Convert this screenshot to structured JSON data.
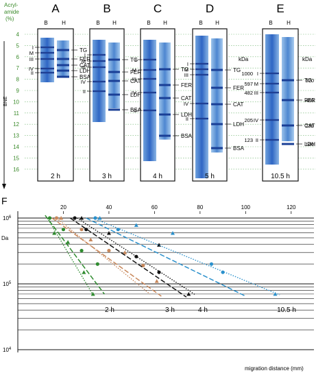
{
  "top": {
    "acryl_label": [
      "Acryl-",
      "amide",
      "(%)"
    ],
    "acryl_values": [
      "4",
      "5",
      "6",
      "7",
      "8",
      "9",
      "10",
      "11",
      "12",
      "13",
      "14",
      "15",
      "16"
    ],
    "bne_label": "BNE",
    "panels": [
      {
        "letter": "A",
        "lanes": [
          "B",
          "H"
        ],
        "time": "2 h",
        "marks": [
          "TG",
          "FER",
          "CAT",
          "LDH",
          "BSA"
        ],
        "roman": [
          "I",
          "M",
          "III",
          "IV",
          "II"
        ]
      },
      {
        "letter": "B",
        "lanes": [
          "B",
          "H"
        ],
        "time": "3 h",
        "marks": [
          "TG",
          "FER",
          "CAT",
          "LDH",
          "BSA"
        ],
        "roman": [
          "I",
          "M",
          "III",
          "IV",
          "II"
        ]
      },
      {
        "letter": "C",
        "lanes": [
          "B",
          "H"
        ],
        "time": "4 h",
        "marks": [
          "TG",
          "FER",
          "CAT",
          "LDH",
          "BSA"
        ],
        "roman": [
          "I",
          "M",
          "III",
          "IV",
          "II"
        ]
      },
      {
        "letter": "D",
        "lanes": [
          "B",
          "H"
        ],
        "time": "5 h",
        "marks": [
          "TG",
          "FER",
          "CAT",
          "LDH",
          "BSA"
        ],
        "roman": [
          "I",
          "M",
          "III",
          "IV",
          "II"
        ]
      },
      {
        "letter": "E",
        "lanes": [
          "B",
          "H"
        ],
        "time": "10.5 h",
        "marks": [
          "TG",
          "FER",
          "CAT",
          "LDH"
        ],
        "roman": [
          "I",
          "M",
          "III",
          "IV",
          "II"
        ]
      }
    ],
    "kda_label": "kDa",
    "e_left_kda": [
      "1000",
      "597",
      "482",
      "205",
      "123"
    ],
    "e_right_kda": [
      "670",
      "480",
      "239",
      "146"
    ]
  },
  "plot": {
    "panel_letter": "F",
    "y_label": "Da",
    "y_ticks": [
      "10^6",
      "10^5",
      "10^4"
    ],
    "x_label": "migration distance (mm)",
    "x_ticks": [
      "20",
      "40",
      "60",
      "80",
      "100",
      "120"
    ],
    "time_labels": [
      "2 h",
      "3 h",
      "4 h",
      "10.5 h"
    ],
    "colors": {
      "2h": "#2e8b2e",
      "3h": "#c8875a",
      "4h": "#111111",
      "10.5h": "#2a90cc"
    }
  },
  "chart_data": {
    "type": "scatter",
    "xlabel": "migration distance (mm)",
    "ylabel": "Da",
    "xlim": [
      0,
      130
    ],
    "ylim": [
      10000,
      1500000
    ],
    "yscale": "log",
    "series": [
      {
        "name": "2 h",
        "color": "#2e8b2e",
        "circles": [
          [
            14,
            1000000
          ],
          [
            20,
            670000
          ],
          [
            28,
            320000
          ],
          [
            35,
            200000
          ]
        ],
        "triangles": [
          [
            16,
            590000
          ],
          [
            22,
            430000
          ],
          [
            29,
            150000
          ],
          [
            33,
            70000
          ]
        ],
        "fit_solid": [
          [
            12,
            1100000
          ],
          [
            38,
            70000
          ]
        ],
        "fit_dotted": [
          [
            13,
            1000000
          ],
          [
            33,
            68000
          ]
        ]
      },
      {
        "name": "3 h",
        "color": "#c8875a",
        "circles": [
          [
            17,
            1000000
          ],
          [
            28,
            670000
          ],
          [
            40,
            320000
          ],
          [
            55,
            190000
          ]
        ],
        "triangles": [
          [
            19,
            1000000
          ],
          [
            32,
            470000
          ],
          [
            47,
            300000
          ],
          [
            61,
            110000
          ]
        ],
        "fit_solid": [
          [
            15,
            1000000
          ],
          [
            63,
            65000
          ]
        ],
        "fit_dotted": [
          [
            17,
            1000000
          ],
          [
            58,
            70000
          ]
        ]
      },
      {
        "name": "4 h",
        "color": "#111111",
        "circles": [
          [
            25,
            1000000
          ],
          [
            30,
            670000
          ],
          [
            52,
            260000
          ],
          [
            62,
            150000
          ]
        ],
        "triangles": [
          [
            28,
            1000000
          ],
          [
            40,
            590000
          ],
          [
            62,
            390000
          ],
          [
            75,
            70000
          ]
        ],
        "fit_solid": [
          [
            23,
            1000000
          ],
          [
            74,
            63000
          ]
        ],
        "fit_dotted": [
          [
            26,
            1000000
          ],
          [
            78,
            68000
          ]
        ]
      },
      {
        "name": "10.5 h",
        "color": "#2a90cc",
        "circles": [
          [
            34,
            1000000
          ],
          [
            44,
            670000
          ],
          [
            85,
            200000
          ],
          [
            90,
            150000
          ]
        ],
        "triangles": [
          [
            36,
            1000000
          ],
          [
            52,
            780000
          ],
          [
            68,
            590000
          ],
          [
            113,
            70000
          ]
        ],
        "fit_solid": [
          [
            30,
            1000000
          ],
          [
            100,
            65000
          ]
        ],
        "fit_dotted": [
          [
            33,
            1000000
          ],
          [
            115,
            68000
          ]
        ]
      }
    ]
  }
}
